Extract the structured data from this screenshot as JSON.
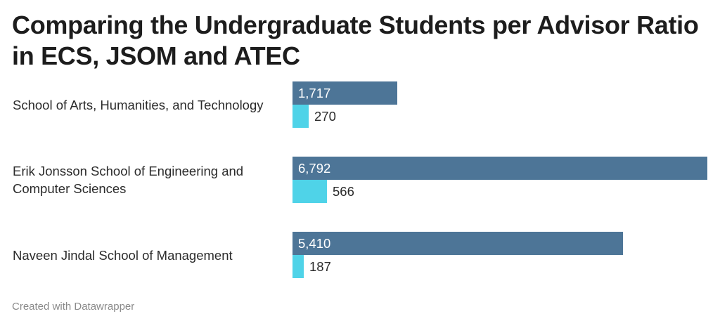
{
  "title": "Comparing the Undergraduate Students per Advisor Ratio in ECS, JSOM and ATEC",
  "footer": "Created with Datawrapper",
  "colors": {
    "series_primary": "#4d7597",
    "series_secondary": "#4fd3e8"
  },
  "chart_data": {
    "type": "bar",
    "orientation": "horizontal",
    "categories": [
      "School of Arts, Humanities, and Technology",
      "Erik Jonsson School of Engineering and Computer Sciences",
      "Naveen Jindal School of Management"
    ],
    "series": [
      {
        "values": [
          1717,
          6792,
          5410
        ]
      },
      {
        "values": [
          270,
          566,
          187
        ]
      }
    ],
    "value_labels": [
      [
        "1,717",
        "6,792",
        "5,410"
      ],
      [
        "270",
        "566",
        "187"
      ]
    ],
    "xlim": [
      0,
      6792
    ],
    "grid": false
  }
}
